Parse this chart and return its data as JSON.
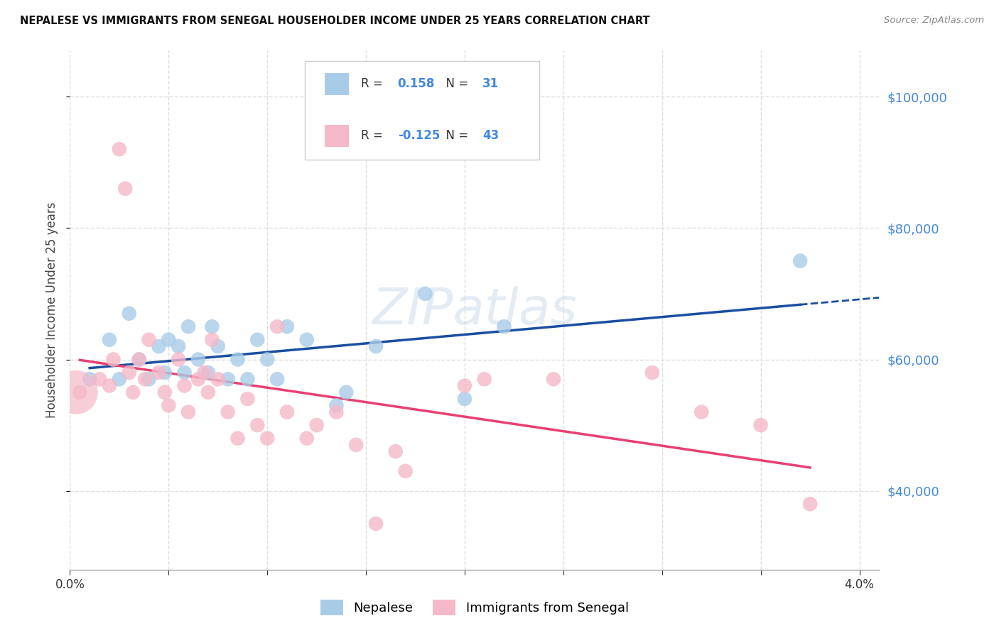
{
  "title": "NEPALESE VS IMMIGRANTS FROM SENEGAL HOUSEHOLDER INCOME UNDER 25 YEARS CORRELATION CHART",
  "source": "Source: ZipAtlas.com",
  "ylabel": "Householder Income Under 25 years",
  "legend_label_1": "Nepalese",
  "legend_label_2": "Immigrants from Senegal",
  "r1": 0.158,
  "n1": 31,
  "r2": -0.125,
  "n2": 43,
  "blue_color": "#a8cce8",
  "pink_color": "#f5b8c8",
  "trend_blue": "#1a4fa0",
  "trend_pink": "#e84070",
  "blue_x": [
    0.1,
    0.2,
    0.25,
    0.3,
    0.35,
    0.4,
    0.45,
    0.48,
    0.5,
    0.55,
    0.58,
    0.6,
    0.65,
    0.7,
    0.72,
    0.75,
    0.8,
    0.85,
    0.9,
    0.95,
    1.0,
    1.05,
    1.1,
    1.2,
    1.35,
    1.4,
    1.55,
    1.8,
    2.0,
    2.2,
    3.7
  ],
  "blue_y": [
    57000,
    63000,
    57000,
    67000,
    60000,
    57000,
    62000,
    58000,
    63000,
    62000,
    58000,
    65000,
    60000,
    58000,
    65000,
    62000,
    57000,
    60000,
    57000,
    63000,
    60000,
    57000,
    65000,
    63000,
    53000,
    55000,
    62000,
    70000,
    54000,
    65000,
    75000
  ],
  "pink_x": [
    0.05,
    0.15,
    0.2,
    0.22,
    0.25,
    0.28,
    0.3,
    0.32,
    0.35,
    0.38,
    0.4,
    0.45,
    0.48,
    0.5,
    0.55,
    0.58,
    0.6,
    0.65,
    0.68,
    0.7,
    0.72,
    0.75,
    0.8,
    0.85,
    0.9,
    0.95,
    1.0,
    1.05,
    1.1,
    1.2,
    1.25,
    1.35,
    1.45,
    1.55,
    1.65,
    1.7,
    2.0,
    2.1,
    2.45,
    2.95,
    3.2,
    3.5,
    3.75
  ],
  "pink_y_large": 55000,
  "pink_x_large": 0.03,
  "pink_y": [
    55000,
    57000,
    56000,
    60000,
    92000,
    86000,
    58000,
    55000,
    60000,
    57000,
    63000,
    58000,
    55000,
    53000,
    60000,
    56000,
    52000,
    57000,
    58000,
    55000,
    63000,
    57000,
    52000,
    48000,
    54000,
    50000,
    48000,
    65000,
    52000,
    48000,
    50000,
    52000,
    47000,
    35000,
    46000,
    43000,
    56000,
    57000,
    57000,
    58000,
    52000,
    50000,
    38000
  ],
  "xlim": [
    0.0,
    4.1
  ],
  "ylim": [
    28000,
    107000
  ],
  "yticks": [
    40000,
    60000,
    80000,
    100000
  ],
  "xtick_positions": [
    0.0,
    0.5,
    1.0,
    1.5,
    2.0,
    2.5,
    3.0,
    3.5,
    4.0
  ],
  "background_color": "#ffffff",
  "grid_color": "#dddddd",
  "watermark": "ZIPatlas"
}
